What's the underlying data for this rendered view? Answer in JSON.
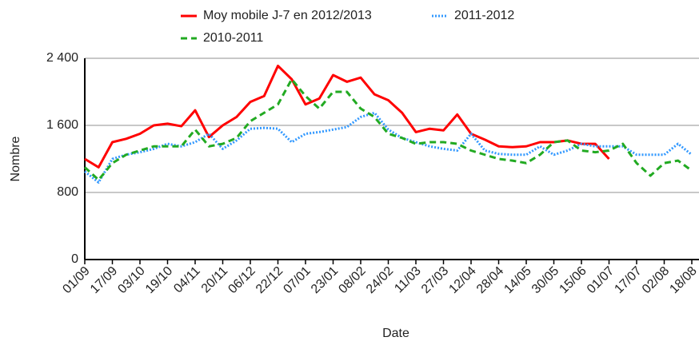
{
  "chart_data": {
    "type": "line",
    "x_label": "Date",
    "y_label": "Nombre",
    "categories": [
      "01/09",
      null,
      "17/09",
      null,
      "03/10",
      null,
      "19/10",
      null,
      "04/11",
      null,
      "20/11",
      null,
      "06/12",
      null,
      "22/12",
      null,
      "07/01",
      null,
      "23/01",
      null,
      "08/02",
      null,
      "24/02",
      null,
      "11/03",
      null,
      "27/03",
      null,
      "12/04",
      null,
      "28/04",
      null,
      "14/05",
      null,
      "30/05",
      null,
      "15/06",
      null,
      "01/07",
      null,
      "17/07",
      null,
      "02/08",
      null,
      "18/08"
    ],
    "series": [
      {
        "name": "Moy mobile J-7 en 2012/2013",
        "color": "#ff0000",
        "dash": "solid",
        "values": [
          1200,
          1100,
          1400,
          1440,
          1500,
          1600,
          1620,
          1590,
          1780,
          1460,
          1600,
          1700,
          1880,
          1950,
          2310,
          2150,
          1850,
          1920,
          2200,
          2120,
          2170,
          1970,
          1900,
          1750,
          1520,
          1560,
          1540,
          1730,
          1500,
          1430,
          1350,
          1340,
          1350,
          1400,
          1400,
          1420,
          1380,
          1380,
          1200,
          null,
          null,
          null,
          null,
          null,
          null
        ]
      },
      {
        "name": "2011-2012",
        "color": "#3399ff",
        "dash": "dotted",
        "values": [
          1050,
          920,
          1200,
          1250,
          1280,
          1320,
          1380,
          1350,
          1400,
          1500,
          1320,
          1420,
          1560,
          1570,
          1560,
          1400,
          1500,
          1520,
          1550,
          1580,
          1700,
          1750,
          1550,
          1450,
          1400,
          1350,
          1320,
          1300,
          1500,
          1300,
          1260,
          1250,
          1250,
          1350,
          1250,
          1300,
          1380,
          1350,
          1350,
          1350,
          1250,
          1250,
          1250,
          1380,
          1250
        ]
      },
      {
        "name": "2010-2011",
        "color": "#22aa22",
        "dash": "dashed",
        "values": [
          1100,
          950,
          1150,
          1250,
          1300,
          1350,
          1350,
          1350,
          1550,
          1350,
          1380,
          1450,
          1650,
          1750,
          1850,
          2150,
          1950,
          1800,
          2000,
          2000,
          1800,
          1700,
          1500,
          1450,
          1380,
          1400,
          1400,
          1380,
          1300,
          1250,
          1200,
          1180,
          1150,
          1250,
          1400,
          1420,
          1300,
          1280,
          1300,
          1380,
          1150,
          1000,
          1150,
          1180,
          1060
        ]
      }
    ],
    "ylim": [
      0,
      2400
    ],
    "yticks": [
      0,
      800,
      {
        "value": 1600,
        "label": "1 600"
      },
      {
        "value": 2400,
        "label": "2 400"
      }
    ],
    "grid": true,
    "legend": "top"
  }
}
